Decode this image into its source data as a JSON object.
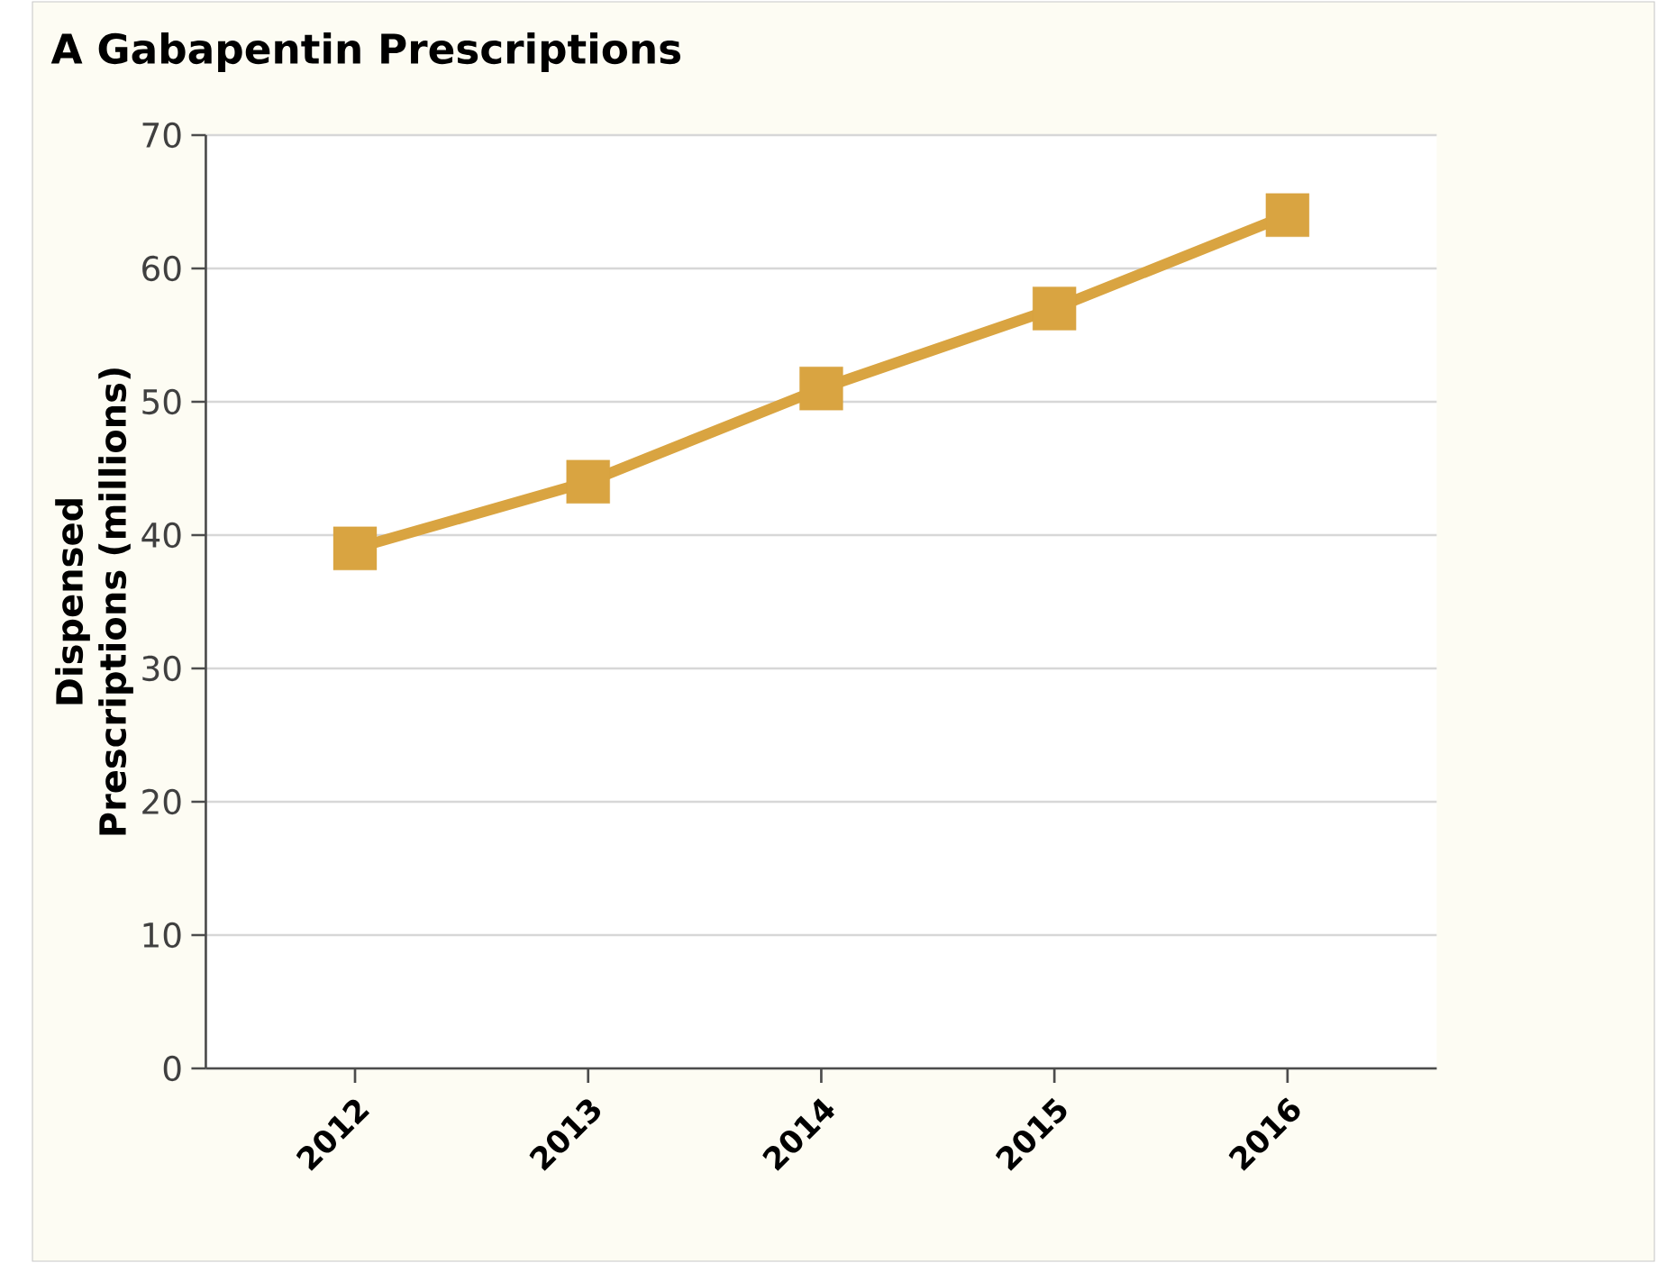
{
  "chart_data": {
    "type": "line",
    "title": "A  Gabapentin Prescriptions",
    "ylabel": "Dispensed Prescriptions (millions)",
    "categories": [
      "2012",
      "2013",
      "2014",
      "2015",
      "2016"
    ],
    "series": [
      {
        "color": "#d9a441",
        "values": [
          39,
          44,
          51,
          57,
          64
        ]
      }
    ],
    "ylim": [
      0,
      70
    ],
    "yticks": [
      0,
      10,
      20,
      30,
      40,
      50,
      60,
      70
    ],
    "grid": "y",
    "marker": "square",
    "line_style": "solid"
  }
}
